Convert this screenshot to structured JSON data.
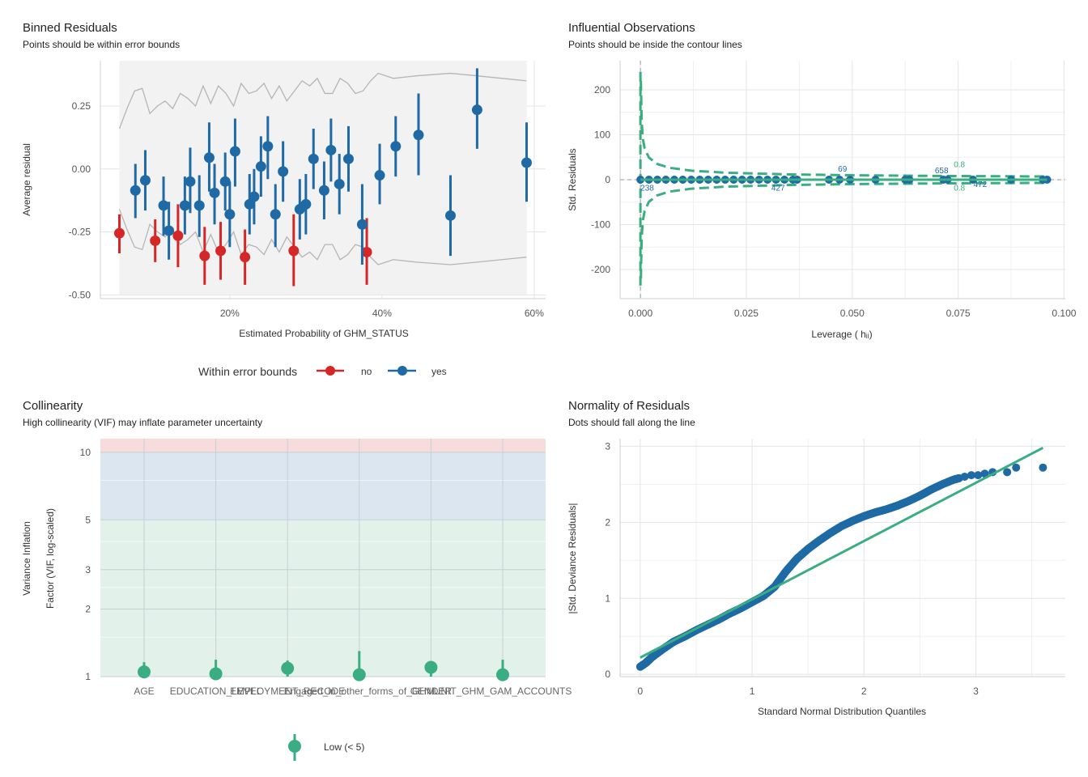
{
  "panels": {
    "binned": {
      "title": "Binned Residuals",
      "subtitle": "Points should be within error bounds",
      "legend_title": "Within error bounds",
      "legend_no": "no",
      "legend_yes": "yes"
    },
    "influential": {
      "title": "Influential Observations",
      "subtitle": "Points should be inside the contour lines"
    },
    "collinearity": {
      "title": "Collinearity",
      "subtitle": "High collinearity (VIF) may inflate parameter uncertainty",
      "legend_low": "Low (< 5)"
    },
    "normality": {
      "title": "Normality of Residuals",
      "subtitle": "Dots should fall along the line"
    }
  },
  "colors": {
    "red": "#d62728",
    "blue": "#1f6aa5",
    "green": "#3aae82",
    "band_grey": "#f2f2f2",
    "grid": "#e4e4e4",
    "zone_red": "#f7dcdc",
    "zone_blue": "#dce6f0",
    "zone_green": "#e2f1ea"
  },
  "chart_data": [
    {
      "id": "binned",
      "type": "scatter",
      "xlabel": "Estimated Probability of GHM_STATUS",
      "ylabel": "Average residual",
      "x_ticks": [
        0.2,
        0.4,
        0.6
      ],
      "x_tick_labels": [
        "20%",
        "40%",
        "60%"
      ],
      "y_ticks": [
        0.25,
        0.0,
        -0.25,
        -0.5
      ],
      "y_tick_labels": [
        "0.25",
        "0.00",
        "-0.25",
        "-0.50"
      ],
      "xlim": [
        0.03,
        0.615
      ],
      "ylim": [
        -0.515,
        0.43
      ],
      "band_x": [
        0.055,
        0.065,
        0.075,
        0.085,
        0.095,
        0.105,
        0.115,
        0.125,
        0.135,
        0.145,
        0.155,
        0.165,
        0.175,
        0.185,
        0.195,
        0.205,
        0.215,
        0.225,
        0.235,
        0.245,
        0.255,
        0.265,
        0.275,
        0.285,
        0.295,
        0.305,
        0.315,
        0.325,
        0.335,
        0.345,
        0.355,
        0.365,
        0.375,
        0.385,
        0.395,
        0.415,
        0.445,
        0.49,
        0.525,
        0.59
      ],
      "band_upper": [
        0.16,
        0.24,
        0.31,
        0.32,
        0.22,
        0.25,
        0.27,
        0.24,
        0.3,
        0.28,
        0.25,
        0.33,
        0.26,
        0.33,
        0.3,
        0.25,
        0.34,
        0.3,
        0.31,
        0.34,
        0.28,
        0.33,
        0.27,
        0.31,
        0.35,
        0.33,
        0.36,
        0.3,
        0.3,
        0.36,
        0.34,
        0.3,
        0.31,
        0.35,
        0.38,
        0.36,
        0.37,
        0.38,
        0.37,
        0.35
      ],
      "band_lower": [
        -0.16,
        -0.24,
        -0.31,
        -0.32,
        -0.22,
        -0.25,
        -0.27,
        -0.24,
        -0.3,
        -0.28,
        -0.25,
        -0.33,
        -0.26,
        -0.33,
        -0.3,
        -0.25,
        -0.34,
        -0.3,
        -0.31,
        -0.34,
        -0.28,
        -0.33,
        -0.27,
        -0.31,
        -0.35,
        -0.33,
        -0.36,
        -0.3,
        -0.3,
        -0.36,
        -0.34,
        -0.3,
        -0.31,
        -0.35,
        -0.38,
        -0.36,
        -0.37,
        -0.38,
        -0.37,
        -0.35
      ],
      "series": [
        {
          "name": "no",
          "points": [
            {
              "x": 0.055,
              "y": -0.255,
              "lo": -0.335,
              "hi": -0.18
            },
            {
              "x": 0.102,
              "y": -0.285,
              "lo": -0.37,
              "hi": -0.2
            },
            {
              "x": 0.132,
              "y": -0.265,
              "lo": -0.39,
              "hi": -0.14
            },
            {
              "x": 0.167,
              "y": -0.345,
              "lo": -0.46,
              "hi": -0.23
            },
            {
              "x": 0.188,
              "y": -0.325,
              "lo": -0.44,
              "hi": -0.21
            },
            {
              "x": 0.22,
              "y": -0.35,
              "lo": -0.46,
              "hi": -0.24
            },
            {
              "x": 0.284,
              "y": -0.325,
              "lo": -0.465,
              "hi": -0.18
            },
            {
              "x": 0.38,
              "y": -0.33,
              "lo": -0.46,
              "hi": -0.195
            }
          ]
        },
        {
          "name": "yes",
          "points": [
            {
              "x": 0.076,
              "y": -0.085,
              "lo": -0.195,
              "hi": 0.02
            },
            {
              "x": 0.089,
              "y": -0.045,
              "lo": -0.165,
              "hi": 0.075
            },
            {
              "x": 0.113,
              "y": -0.145,
              "lo": -0.265,
              "hi": -0.03
            },
            {
              "x": 0.12,
              "y": -0.245,
              "lo": -0.36,
              "hi": -0.13
            },
            {
              "x": 0.141,
              "y": -0.145,
              "lo": -0.26,
              "hi": -0.03
            },
            {
              "x": 0.148,
              "y": -0.05,
              "lo": -0.175,
              "hi": 0.085
            },
            {
              "x": 0.16,
              "y": -0.145,
              "lo": -0.27,
              "hi": -0.025
            },
            {
              "x": 0.173,
              "y": 0.045,
              "lo": -0.09,
              "hi": 0.185
            },
            {
              "x": 0.18,
              "y": -0.095,
              "lo": -0.22,
              "hi": 0.02
            },
            {
              "x": 0.194,
              "y": -0.05,
              "lo": -0.165,
              "hi": 0.065
            },
            {
              "x": 0.2,
              "y": -0.18,
              "lo": -0.31,
              "hi": -0.05
            },
            {
              "x": 0.207,
              "y": 0.07,
              "lo": -0.07,
              "hi": 0.2
            },
            {
              "x": 0.226,
              "y": -0.14,
              "lo": -0.26,
              "hi": -0.02
            },
            {
              "x": 0.232,
              "y": -0.11,
              "lo": -0.22,
              "hi": 0.0
            },
            {
              "x": 0.241,
              "y": 0.01,
              "lo": -0.11,
              "hi": 0.13
            },
            {
              "x": 0.25,
              "y": 0.09,
              "lo": -0.04,
              "hi": 0.21
            },
            {
              "x": 0.26,
              "y": -0.18,
              "lo": -0.31,
              "hi": -0.06
            },
            {
              "x": 0.27,
              "y": -0.01,
              "lo": -0.13,
              "hi": 0.11
            },
            {
              "x": 0.292,
              "y": -0.16,
              "lo": -0.28,
              "hi": -0.04
            },
            {
              "x": 0.3,
              "y": -0.14,
              "lo": -0.26,
              "hi": -0.02
            },
            {
              "x": 0.31,
              "y": 0.04,
              "lo": -0.08,
              "hi": 0.16
            },
            {
              "x": 0.324,
              "y": -0.085,
              "lo": -0.2,
              "hi": 0.03
            },
            {
              "x": 0.333,
              "y": 0.075,
              "lo": -0.05,
              "hi": 0.2
            },
            {
              "x": 0.344,
              "y": -0.06,
              "lo": -0.18,
              "hi": 0.06
            },
            {
              "x": 0.356,
              "y": 0.04,
              "lo": -0.09,
              "hi": 0.17
            },
            {
              "x": 0.374,
              "y": -0.22,
              "lo": -0.38,
              "hi": -0.06
            },
            {
              "x": 0.397,
              "y": -0.025,
              "lo": -0.14,
              "hi": 0.1
            },
            {
              "x": 0.418,
              "y": 0.09,
              "lo": -0.03,
              "hi": 0.21
            },
            {
              "x": 0.448,
              "y": 0.135,
              "lo": -0.025,
              "hi": 0.3
            },
            {
              "x": 0.49,
              "y": -0.185,
              "lo": -0.345,
              "hi": -0.025
            },
            {
              "x": 0.525,
              "y": 0.235,
              "lo": 0.08,
              "hi": 0.4
            },
            {
              "x": 0.59,
              "y": 0.025,
              "lo": -0.13,
              "hi": 0.185
            }
          ]
        }
      ]
    },
    {
      "id": "influential",
      "type": "scatter",
      "xlabel": "Leverage ( hᵢᵢ)",
      "ylabel": "Std. Residuals",
      "x_ticks": [
        0.0,
        0.025,
        0.05,
        0.075,
        0.1
      ],
      "x_tick_labels": [
        "0.000",
        "0.025",
        "0.050",
        "0.075",
        "0.100"
      ],
      "y_ticks": [
        200,
        100,
        0,
        -100,
        -200
      ],
      "y_tick_labels": [
        "200",
        "100",
        "0",
        "-100",
        "-200"
      ],
      "xlim": [
        -0.0048,
        0.1003
      ],
      "ylim": [
        -265,
        265
      ],
      "points_x": [
        0.0,
        0.002,
        0.004,
        0.006,
        0.008,
        0.01,
        0.012,
        0.014,
        0.016,
        0.018,
        0.02,
        0.022,
        0.024,
        0.026,
        0.028,
        0.03,
        0.032,
        0.034,
        0.036,
        0.037,
        0.0445,
        0.047,
        0.0495,
        0.0555,
        0.0625,
        0.0635,
        0.0715,
        0.0725,
        0.0785,
        0.0875,
        0.095,
        0.096
      ],
      "labels": [
        {
          "text": "238",
          "x": 0.0016,
          "y": -24
        },
        {
          "text": "427",
          "x": 0.0325,
          "y": -24
        },
        {
          "text": "69",
          "x": 0.0477,
          "y": 18
        },
        {
          "text": "658",
          "x": 0.0711,
          "y": 14
        },
        {
          "text": "472",
          "x": 0.0802,
          "y": -16
        }
      ],
      "contour_labels": [
        {
          "text": "0.8",
          "x": 0.0753,
          "y": 28
        },
        {
          "text": "0.8",
          "x": 0.0753,
          "y": -24
        }
      ]
    },
    {
      "id": "collinearity",
      "type": "scatter",
      "ylabel_lines": [
        "Variance Inflation",
        "Factor (VIF, log-scaled)"
      ],
      "categories": [
        "AGE",
        "EDUCATION_LEVEL",
        "EMPLOYMENT_RECODE",
        "Engaged_in_other_forms_of_GHM",
        "GENDER",
        "UNIT_GHM_GAM_ACCOUNTS"
      ],
      "values": [
        1.05,
        1.03,
        1.09,
        1.02,
        1.1,
        1.02
      ],
      "ci_high": [
        1.16,
        1.19,
        1.18,
        1.3,
        1.17,
        1.19
      ],
      "ci_low": [
        1.0,
        1.0,
        1.0,
        1.0,
        1.0,
        1.0
      ],
      "y_ticks": [
        1,
        2,
        3,
        5,
        10
      ],
      "y_tick_labels": [
        "1",
        "2",
        "3",
        "5",
        "10"
      ],
      "ylim": [
        1,
        11.5
      ],
      "scale": "log"
    },
    {
      "id": "normality",
      "type": "scatter",
      "xlabel": "Standard Normal Distribution Quantiles",
      "ylabel": "|Std. Deviance Residuals|",
      "x_ticks": [
        0,
        1,
        2,
        3
      ],
      "x_tick_labels": [
        "0",
        "1",
        "2",
        "3"
      ],
      "y_ticks": [
        0,
        1,
        2,
        3
      ],
      "y_tick_labels": [
        "0",
        "1",
        "2",
        "3"
      ],
      "xlim": [
        -0.18,
        3.8
      ],
      "ylim": [
        -0.03,
        3.1
      ],
      "line": [
        [
          0.0,
          0.22
        ],
        [
          3.6,
          2.98
        ]
      ],
      "curve_x": [
        0.0,
        0.05,
        0.1,
        0.2,
        0.3,
        0.4,
        0.5,
        0.6,
        0.7,
        0.8,
        0.9,
        1.0,
        1.1,
        1.2,
        1.3,
        1.4,
        1.5,
        1.6,
        1.7,
        1.8,
        1.9,
        2.0,
        2.1,
        2.2,
        2.3,
        2.4,
        2.5,
        2.6,
        2.7,
        2.8,
        2.85
      ],
      "curve_y": [
        0.1,
        0.15,
        0.22,
        0.33,
        0.43,
        0.5,
        0.58,
        0.65,
        0.72,
        0.8,
        0.87,
        0.95,
        1.03,
        1.15,
        1.35,
        1.52,
        1.65,
        1.76,
        1.86,
        1.95,
        2.02,
        2.08,
        2.13,
        2.17,
        2.22,
        2.28,
        2.35,
        2.43,
        2.5,
        2.56,
        2.58
      ],
      "upper_points": [
        [
          2.9,
          2.6
        ],
        [
          2.96,
          2.62
        ],
        [
          3.02,
          2.62
        ],
        [
          3.08,
          2.64
        ],
        [
          3.15,
          2.66
        ],
        [
          3.28,
          2.66
        ],
        [
          3.36,
          2.72
        ],
        [
          3.6,
          2.72
        ]
      ]
    }
  ]
}
